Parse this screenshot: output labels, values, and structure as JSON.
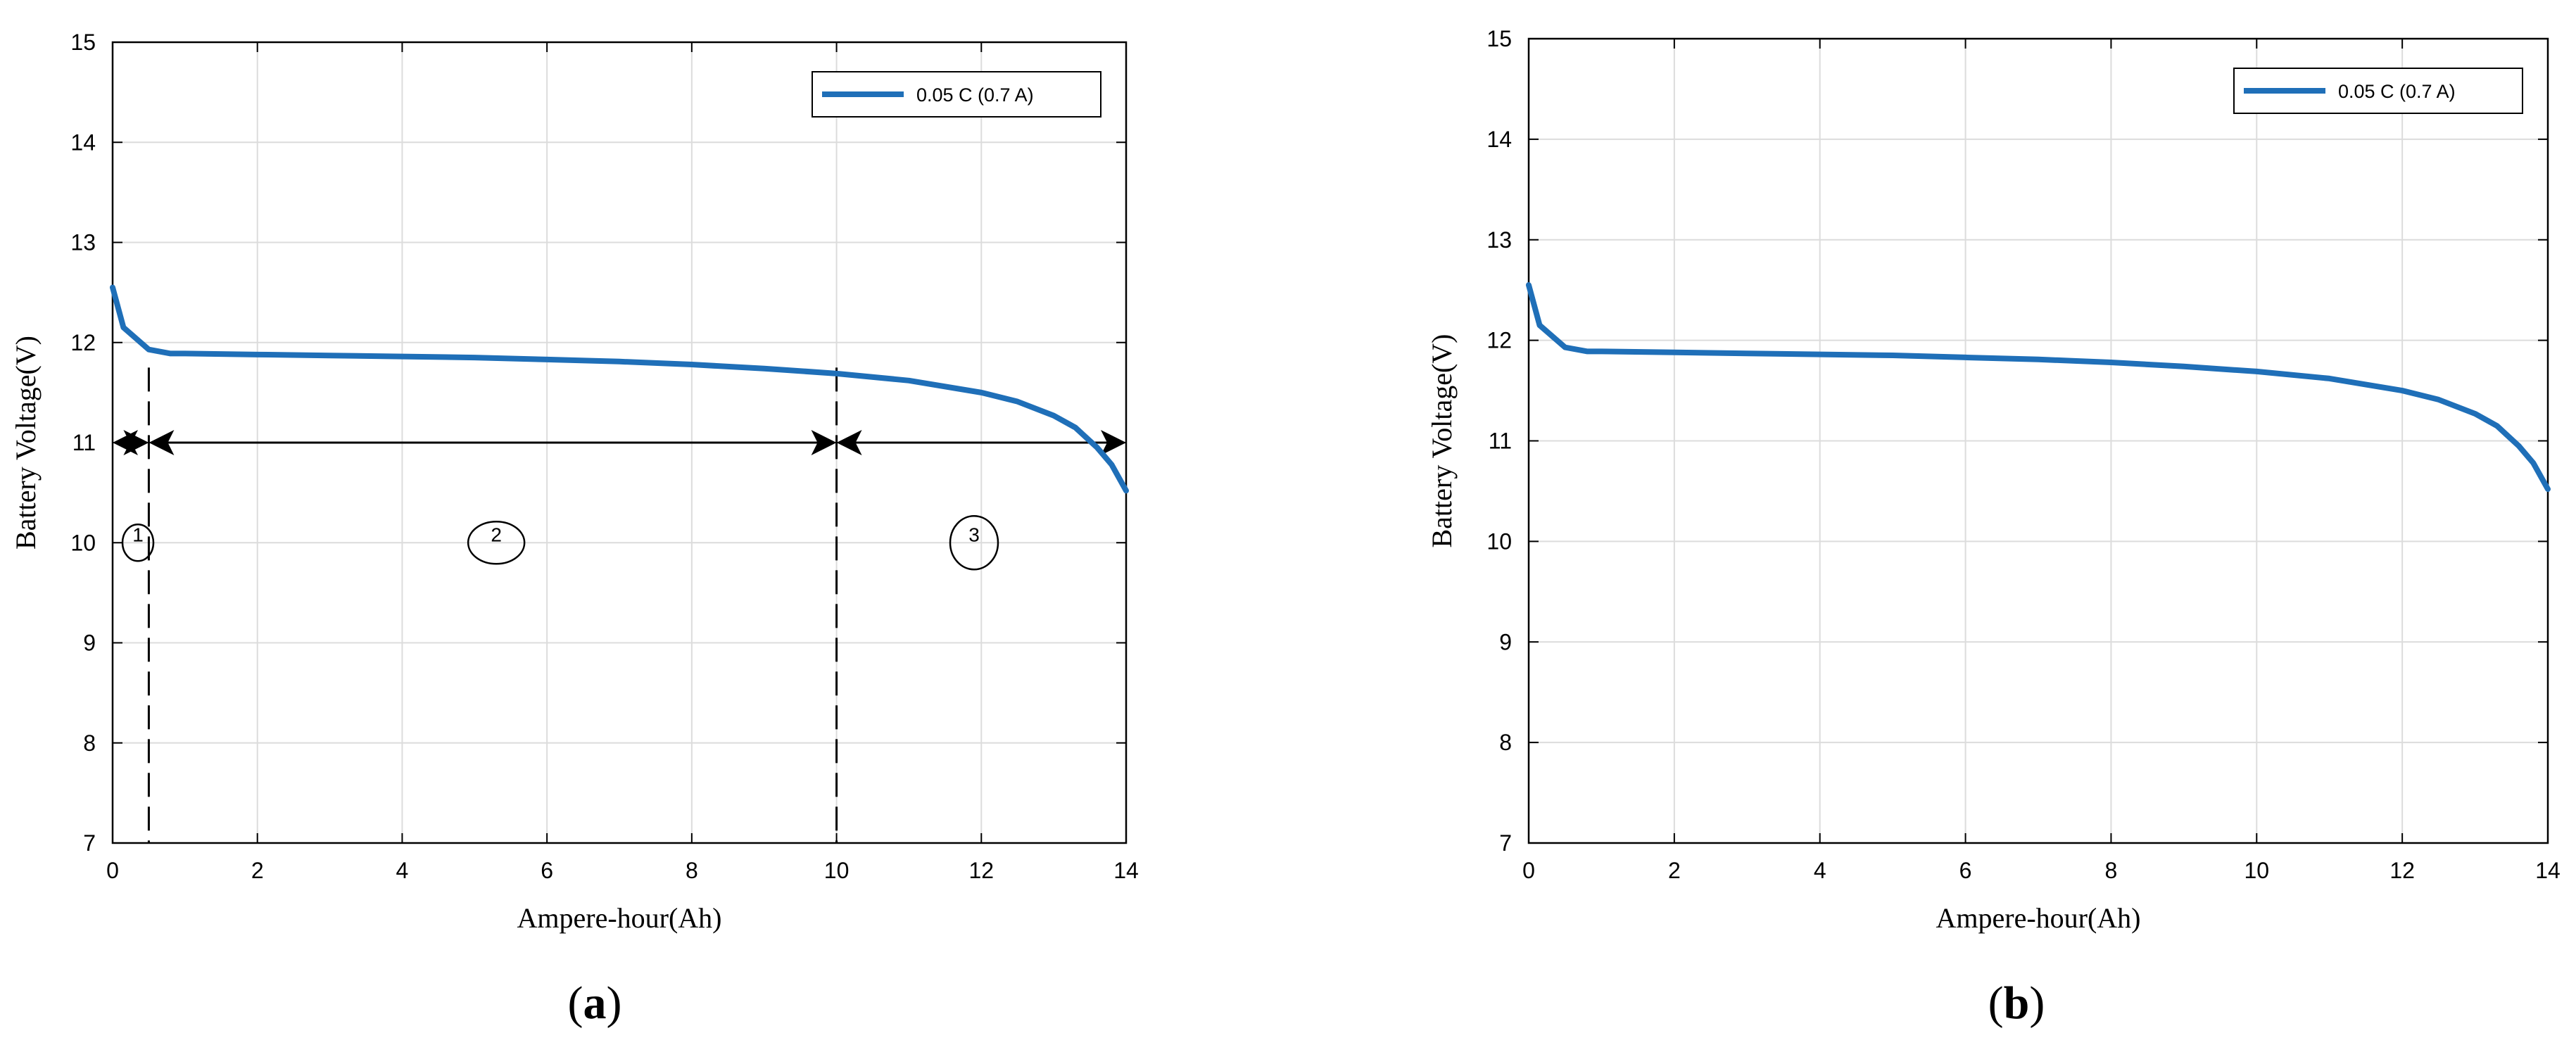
{
  "panels": [
    {
      "id": "a",
      "caption_letter": "a"
    },
    {
      "id": "b",
      "caption_letter": "b"
    }
  ],
  "region_labels": [
    "1",
    "2",
    "3"
  ],
  "chart_data": [
    {
      "type": "line",
      "panel": "a",
      "xlabel": "Ampere-hour(Ah)",
      "ylabel": "Battery Voltage(V)",
      "xlim": [
        0,
        14
      ],
      "ylim": [
        7,
        15
      ],
      "xticks": [
        "0",
        "2",
        "4",
        "6",
        "8",
        "10",
        "12",
        "14"
      ],
      "yticks": [
        "7",
        "8",
        "9",
        "10",
        "11",
        "12",
        "13",
        "14",
        "15"
      ],
      "grid": true,
      "legend_position": "top-right",
      "series": [
        {
          "name": "0.05 C (0.7 A)",
          "color": "#1f6fb8",
          "x": [
            0,
            0.15,
            0.5,
            0.8,
            1,
            2,
            3,
            4,
            5,
            6,
            7,
            8,
            9,
            10,
            11,
            12,
            12.5,
            13,
            13.3,
            13.6,
            13.8,
            14
          ],
          "y": [
            12.55,
            12.15,
            11.93,
            11.89,
            11.89,
            11.88,
            11.87,
            11.86,
            11.85,
            11.83,
            11.81,
            11.78,
            11.74,
            11.69,
            11.62,
            11.5,
            11.41,
            11.27,
            11.15,
            10.95,
            10.78,
            10.52
          ]
        }
      ],
      "annotations": {
        "dividers_x": [
          0.5,
          10
        ],
        "arrow_y": 11,
        "regions": [
          {
            "label": "1",
            "x": 0.35,
            "y": 10
          },
          {
            "label": "2",
            "x": 5.3,
            "y": 10
          },
          {
            "label": "3",
            "x": 11.9,
            "y": 10
          }
        ]
      }
    },
    {
      "type": "line",
      "panel": "b",
      "xlabel": "Ampere-hour(Ah)",
      "ylabel": "Battery Voltage(V)",
      "xlim": [
        0,
        14
      ],
      "ylim": [
        7,
        15
      ],
      "xticks": [
        "0",
        "2",
        "4",
        "6",
        "8",
        "10",
        "12",
        "14"
      ],
      "yticks": [
        "7",
        "8",
        "9",
        "10",
        "11",
        "12",
        "13",
        "14",
        "15"
      ],
      "grid": true,
      "legend_position": "top-right",
      "series": [
        {
          "name": "0.05 C (0.7 A)",
          "color": "#1f6fb8",
          "x": [
            0,
            0.15,
            0.5,
            0.8,
            1,
            2,
            3,
            4,
            5,
            6,
            7,
            8,
            9,
            10,
            11,
            12,
            12.5,
            13,
            13.3,
            13.6,
            13.8,
            14
          ],
          "y": [
            12.55,
            12.15,
            11.93,
            11.89,
            11.89,
            11.88,
            11.87,
            11.86,
            11.85,
            11.83,
            11.81,
            11.78,
            11.74,
            11.69,
            11.62,
            11.5,
            11.41,
            11.27,
            11.15,
            10.95,
            10.78,
            10.52
          ]
        }
      ]
    }
  ]
}
